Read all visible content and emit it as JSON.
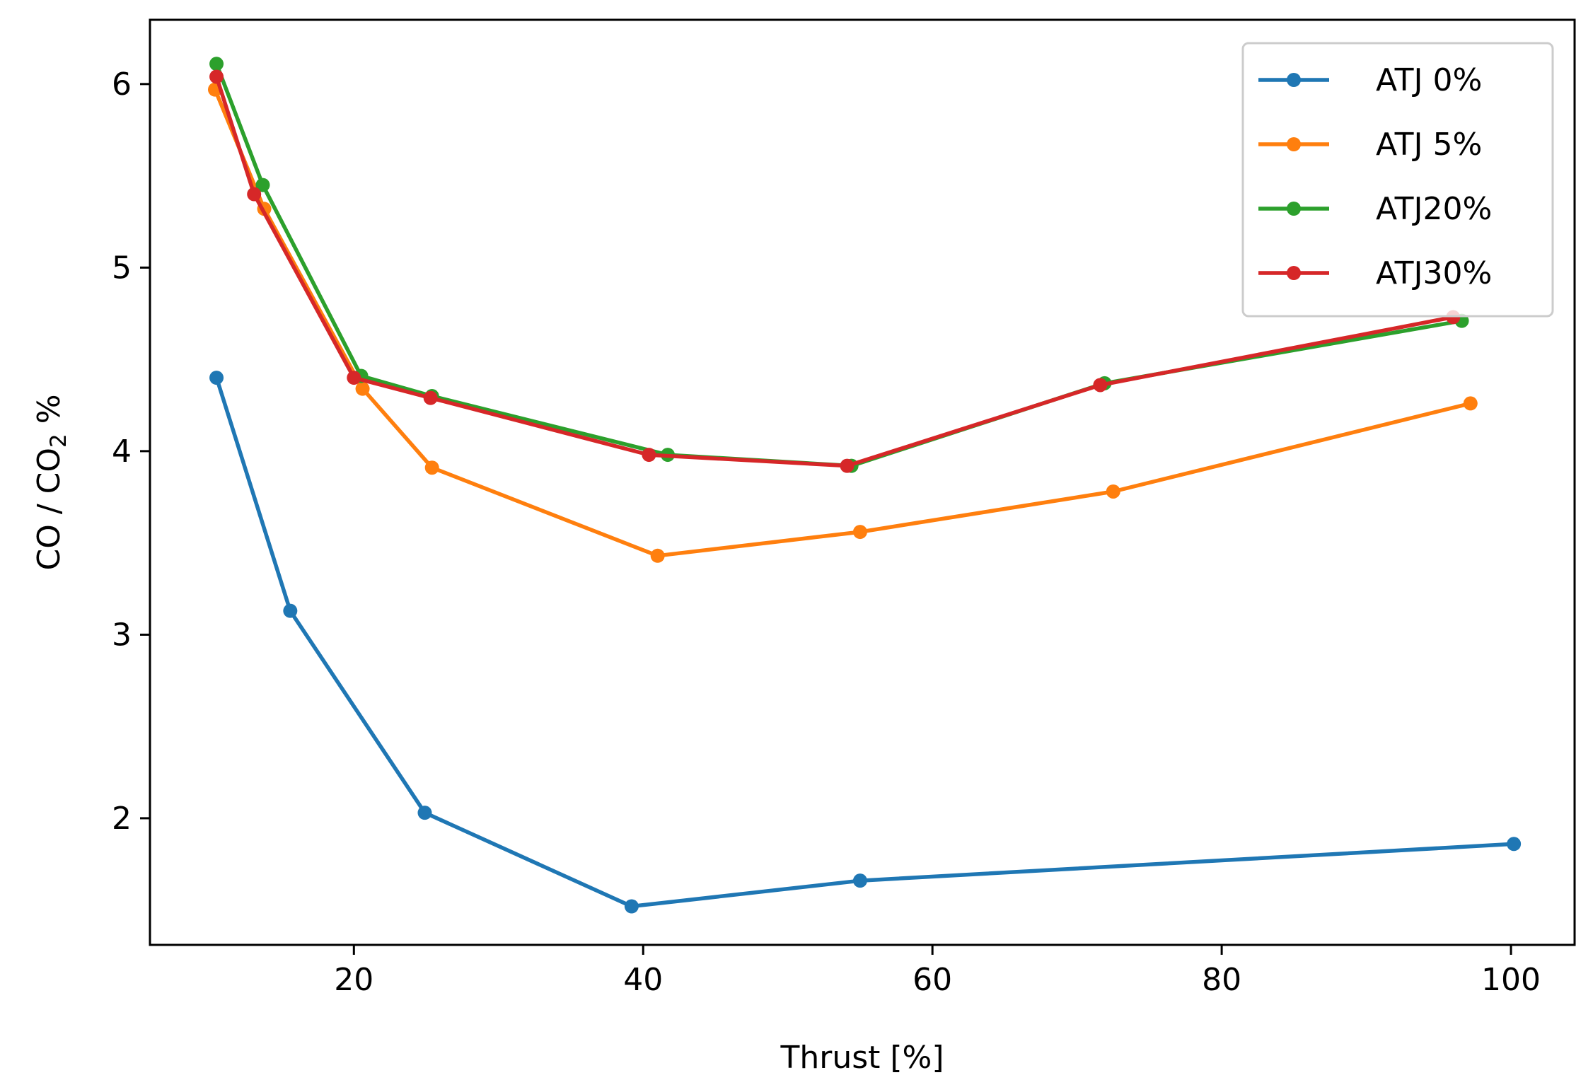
{
  "chart_data": {
    "type": "line",
    "title": "",
    "xlabel": "Thrust [%]",
    "ylabel_parts": [
      "CO / CO",
      "2",
      " %"
    ],
    "xlim": [
      5.9,
      104.4
    ],
    "ylim": [
      1.31,
      6.35
    ],
    "xticks": [
      20,
      40,
      60,
      80,
      100
    ],
    "yticks": [
      2,
      3,
      4,
      5,
      6
    ],
    "legend_position": "top-right",
    "grid": false,
    "series": [
      {
        "name": "ATJ 0%",
        "color": "#1f77b4",
        "x": [
          10.5,
          15.6,
          24.9,
          39.2,
          55.0,
          100.2
        ],
        "y": [
          4.4,
          3.13,
          2.03,
          1.52,
          1.66,
          1.86
        ]
      },
      {
        "name": "ATJ 5%",
        "color": "#ff7f0e",
        "x": [
          10.4,
          13.8,
          20.6,
          25.4,
          41.0,
          55.0,
          72.5,
          97.2
        ],
        "y": [
          5.97,
          5.32,
          4.34,
          3.91,
          3.43,
          3.56,
          3.78,
          4.26
        ]
      },
      {
        "name": "ATJ20%",
        "color": "#2ca02c",
        "x": [
          10.5,
          13.7,
          20.5,
          25.4,
          41.7,
          54.4,
          71.9,
          96.6
        ],
        "y": [
          6.11,
          5.45,
          4.41,
          4.3,
          3.98,
          3.92,
          4.37,
          4.71
        ]
      },
      {
        "name": "ATJ30%",
        "color": "#d62728",
        "x": [
          10.5,
          13.1,
          20.0,
          25.3,
          40.4,
          54.1,
          71.6,
          96.0
        ],
        "y": [
          6.04,
          5.4,
          4.4,
          4.29,
          3.98,
          3.92,
          4.36,
          4.73
        ]
      }
    ]
  }
}
